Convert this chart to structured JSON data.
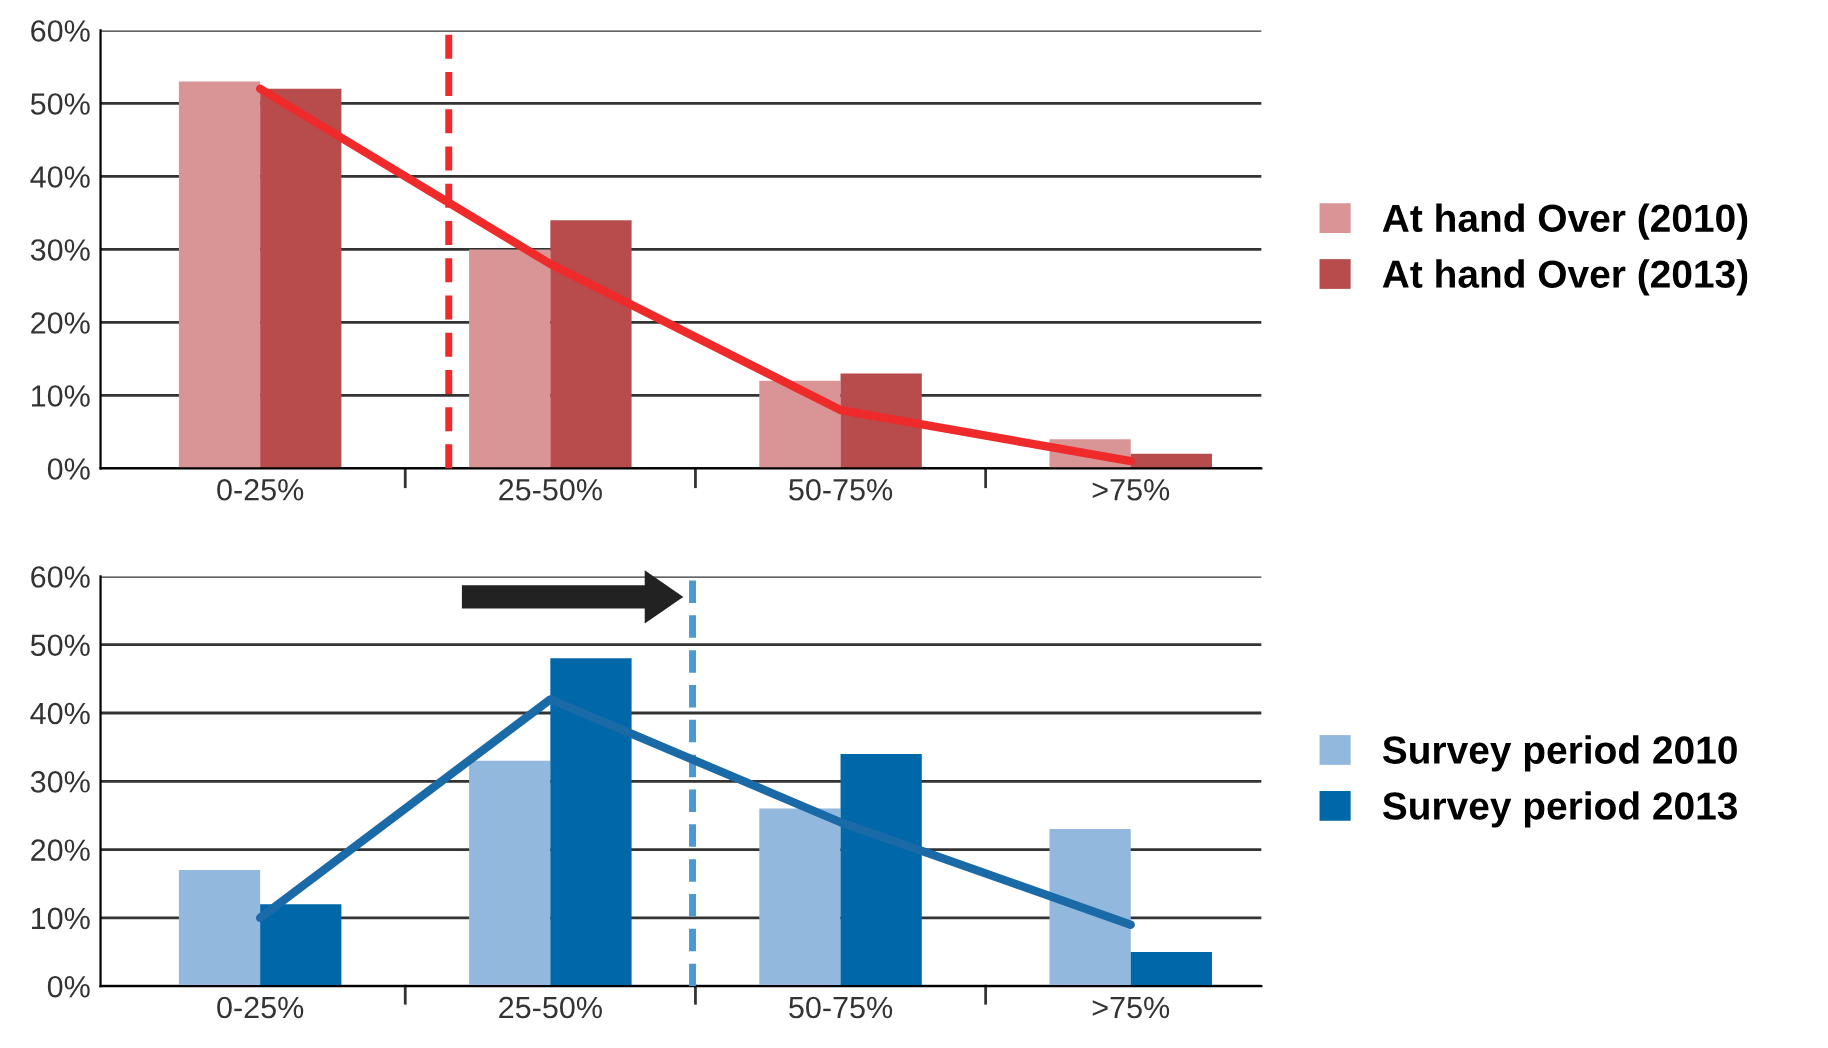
{
  "chart_data": [
    {
      "type": "bar",
      "categories": [
        "0-25%",
        "25-50%",
        "50-75%",
        ">75%"
      ],
      "series": [
        {
          "name": "At hand Over (2010)",
          "color": "#d99595",
          "values": [
            53,
            30,
            12,
            4
          ]
        },
        {
          "name": "At hand Over (2013)",
          "color": "#b84c4c",
          "values": [
            52,
            34,
            13,
            2
          ]
        },
        {
          "type": "line",
          "color": "#ee2a2a",
          "values": [
            52,
            28,
            8,
            1
          ]
        }
      ],
      "ylim": [
        0,
        60
      ],
      "yticks": [
        {
          "value": 0,
          "label": "0%"
        },
        {
          "value": 10,
          "label": "10%"
        },
        {
          "value": 20,
          "label": "20%"
        },
        {
          "value": 30,
          "label": "30%"
        },
        {
          "value": 40,
          "label": "40%"
        },
        {
          "value": 50,
          "label": "50%"
        },
        {
          "value": 60,
          "label": "60%"
        }
      ],
      "grid": "y",
      "legend": "right"
    },
    {
      "type": "bar",
      "categories": [
        "0-25%",
        "25-50%",
        "50-75%",
        ">75%"
      ],
      "series": [
        {
          "name": "Survey period 2010",
          "color": "#92b8de",
          "values": [
            17,
            33,
            26,
            23
          ]
        },
        {
          "name": "Survey period 2013",
          "color": "#0067a9",
          "values": [
            12,
            48,
            34,
            5
          ]
        },
        {
          "type": "line",
          "color": "#1b6aa8",
          "values": [
            10,
            42,
            24,
            9
          ]
        }
      ],
      "ylim": [
        0,
        60
      ],
      "yticks": [
        {
          "value": 0,
          "label": "0%"
        },
        {
          "value": 10,
          "label": "10%"
        },
        {
          "value": 20,
          "label": "20%"
        },
        {
          "value": 30,
          "label": "30%"
        },
        {
          "value": 40,
          "label": "40%"
        },
        {
          "value": 50,
          "label": "50%"
        },
        {
          "value": 60,
          "label": "60%"
        }
      ],
      "grid": "y",
      "legend": "right"
    }
  ]
}
